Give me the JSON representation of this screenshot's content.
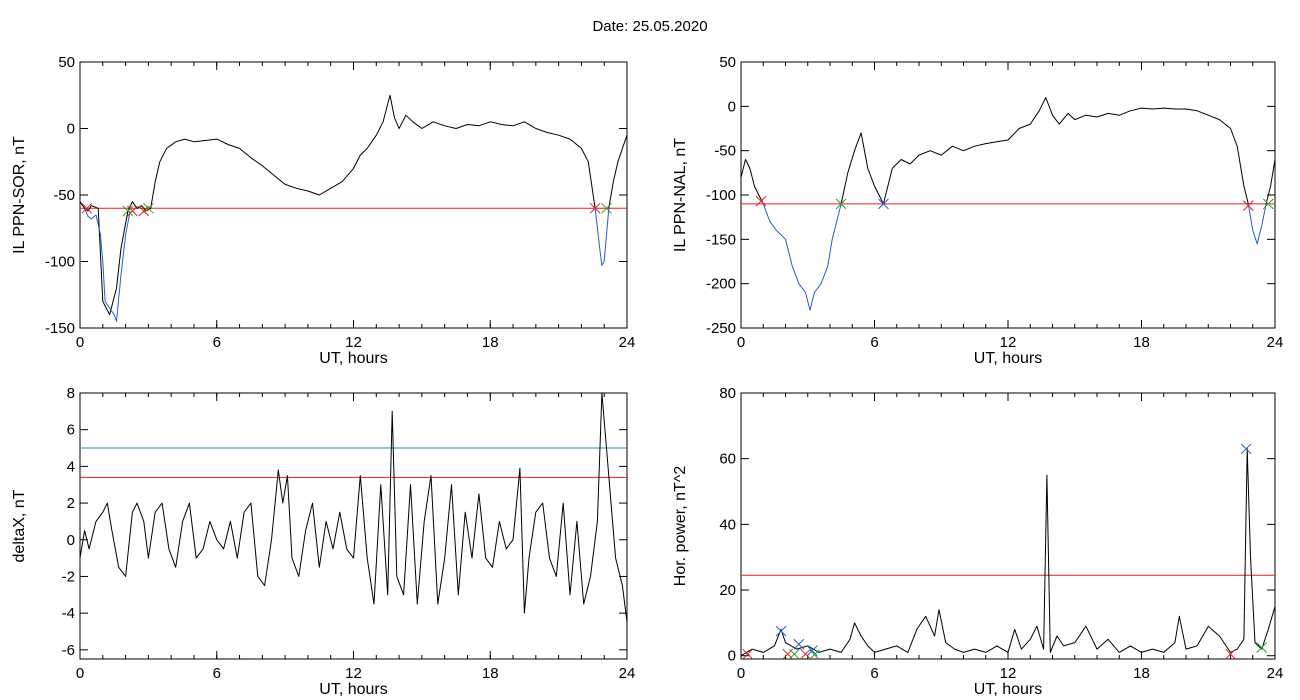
{
  "page": {
    "title": "Date:  25.05.2020"
  },
  "chart_data": [
    {
      "type": "line",
      "xlabel": "UT, hours",
      "ylabel": "IL PPN-SOR, nT",
      "xlim": [
        0,
        24
      ],
      "ylim": [
        -150,
        50
      ],
      "xticks": [
        0,
        6,
        12,
        18,
        24
      ],
      "yticks": [
        -150,
        -100,
        -50,
        0,
        50
      ],
      "series": [
        {
          "color": "#000000",
          "x": [
            0,
            0.2,
            0.35,
            0.5,
            0.8,
            1.0,
            1.3,
            1.6,
            1.8,
            2.1,
            2.3,
            2.5,
            2.7,
            2.9,
            3.1,
            3.3,
            3.5,
            3.8,
            4.2,
            4.6,
            5.0,
            5.5,
            6.0,
            6.5,
            7.0,
            7.5,
            8.0,
            8.5,
            9.0,
            9.5,
            10.0,
            10.5,
            11.0,
            11.5,
            12.0,
            12.3,
            12.6,
            13.0,
            13.3,
            13.6,
            13.8,
            14.0,
            14.3,
            14.6,
            15.0,
            15.5,
            16.0,
            16.5,
            17.0,
            17.5,
            18.0,
            18.5,
            19.0,
            19.5,
            20.0,
            20.5,
            21.0,
            21.5,
            22.0,
            22.3,
            22.6
          ],
          "y": [
            -55,
            -60,
            -62,
            -58,
            -60,
            -130,
            -140,
            -120,
            -90,
            -62,
            -55,
            -60,
            -58,
            -62,
            -60,
            -40,
            -25,
            -15,
            -10,
            -8,
            -10,
            -9,
            -8,
            -12,
            -15,
            -22,
            -28,
            -35,
            -42,
            -45,
            -47,
            -50,
            -45,
            -40,
            -30,
            -20,
            -15,
            -5,
            5,
            25,
            8,
            0,
            10,
            5,
            0,
            5,
            2,
            0,
            3,
            2,
            5,
            3,
            2,
            5,
            0,
            -3,
            -5,
            -8,
            -15,
            -25,
            -60
          ]
        },
        {
          "color": "#1f5fd1",
          "x": [
            0.2,
            0.35,
            0.5,
            0.7,
            0.9,
            1.0,
            1.1,
            1.3,
            1.5,
            1.6,
            1.8,
            2.0,
            2.2
          ],
          "y": [
            -60,
            -66,
            -68,
            -65,
            -80,
            -100,
            -130,
            -135,
            -140,
            -145,
            -110,
            -80,
            -62
          ]
        },
        {
          "color": "#1f5fd1",
          "x": [
            22.6,
            22.8,
            22.9,
            23.0,
            23.1,
            23.2
          ],
          "y": [
            -60,
            -90,
            -103,
            -100,
            -80,
            -60
          ]
        },
        {
          "color": "#000000",
          "x": [
            23.2,
            23.4,
            23.6,
            23.8,
            24.0
          ],
          "y": [
            -60,
            -40,
            -25,
            -15,
            -5
          ]
        }
      ],
      "hlines": [
        {
          "y": -60,
          "color": "#e02020"
        }
      ],
      "markers": [
        {
          "x": 0.3,
          "y": -60,
          "color": "#e02020"
        },
        {
          "x": 2.1,
          "y": -62,
          "color": "#2ca02c"
        },
        {
          "x": 2.3,
          "y": -62,
          "color": "#e02020"
        },
        {
          "x": 2.8,
          "y": -62,
          "color": "#e02020"
        },
        {
          "x": 3.0,
          "y": -60,
          "color": "#2ca02c"
        },
        {
          "x": 22.6,
          "y": -60,
          "color": "#e02020"
        },
        {
          "x": 23.1,
          "y": -60,
          "color": "#2ca02c"
        }
      ]
    },
    {
      "type": "line",
      "xlabel": "UT, hours",
      "ylabel": "IL PPN-NAL, nT",
      "xlim": [
        0,
        24
      ],
      "ylim": [
        -250,
        50
      ],
      "xticks": [
        0,
        6,
        12,
        18,
        24
      ],
      "yticks": [
        -250,
        -200,
        -150,
        -100,
        -50,
        0,
        50
      ],
      "series": [
        {
          "color": "#000000",
          "x": [
            0,
            0.2,
            0.4,
            0.6,
            0.8,
            1.0
          ],
          "y": [
            -80,
            -60,
            -70,
            -90,
            -100,
            -110
          ]
        },
        {
          "color": "#1f5fd1",
          "x": [
            1.0,
            1.3,
            1.6,
            2.0,
            2.3,
            2.6,
            2.9,
            3.1,
            3.3,
            3.6,
            3.9,
            4.1,
            4.3,
            4.5
          ],
          "y": [
            -110,
            -130,
            -140,
            -150,
            -180,
            -200,
            -210,
            -230,
            -210,
            -200,
            -180,
            -150,
            -130,
            -110
          ]
        },
        {
          "color": "#000000",
          "x": [
            4.5,
            4.8,
            5.1,
            5.4,
            5.7,
            6.0,
            6.2,
            6.4
          ],
          "y": [
            -110,
            -75,
            -50,
            -30,
            -70,
            -90,
            -100,
            -110
          ]
        },
        {
          "color": "#000000",
          "x": [
            6.4,
            6.8,
            7.2,
            7.6,
            8.0,
            8.5,
            9.0,
            9.5,
            10.0,
            10.5,
            11.0,
            11.5,
            12.0,
            12.5,
            13.0,
            13.4,
            13.7,
            14.0,
            14.3,
            14.7,
            15.0,
            15.5,
            16.0,
            16.5,
            17.0,
            17.5,
            18.0,
            18.5,
            19.0,
            19.5,
            20.0,
            20.5,
            21.0,
            21.5,
            22.0,
            22.3,
            22.6,
            22.8
          ],
          "y": [
            -110,
            -70,
            -60,
            -65,
            -55,
            -50,
            -55,
            -45,
            -50,
            -45,
            -42,
            -40,
            -38,
            -25,
            -20,
            -5,
            10,
            -10,
            -20,
            -8,
            -15,
            -10,
            -12,
            -8,
            -10,
            -5,
            -2,
            -3,
            -2,
            -3,
            -3,
            -5,
            -10,
            -15,
            -25,
            -45,
            -90,
            -110
          ]
        },
        {
          "color": "#1f5fd1",
          "x": [
            22.8,
            23.0,
            23.2,
            23.4,
            23.6
          ],
          "y": [
            -110,
            -140,
            -155,
            -135,
            -110
          ]
        },
        {
          "color": "#000000",
          "x": [
            23.6,
            23.8,
            24.0
          ],
          "y": [
            -110,
            -90,
            -60
          ]
        }
      ],
      "hlines": [
        {
          "y": -110,
          "color": "#e02020"
        }
      ],
      "markers": [
        {
          "x": 0.9,
          "y": -107,
          "color": "#e02020"
        },
        {
          "x": 4.5,
          "y": -110,
          "color": "#2ca02c"
        },
        {
          "x": 6.4,
          "y": -110,
          "color": "#1f5fd1"
        },
        {
          "x": 22.8,
          "y": -112,
          "color": "#e02020"
        },
        {
          "x": 23.7,
          "y": -110,
          "color": "#2ca02c"
        }
      ]
    },
    {
      "type": "line",
      "xlabel": "UT, hours",
      "ylabel": "deltaX, nT",
      "xlim": [
        0,
        24
      ],
      "ylim": [
        -6.5,
        8
      ],
      "xticks": [
        0,
        6,
        12,
        18,
        24
      ],
      "yticks": [
        -6,
        -4,
        -2,
        0,
        2,
        4,
        6,
        8
      ],
      "series": [
        {
          "color": "#000000",
          "x": [
            0,
            0.2,
            0.4,
            0.7,
            1.0,
            1.2,
            1.4,
            1.7,
            2.0,
            2.3,
            2.5,
            2.8,
            3.0,
            3.3,
            3.6,
            3.9,
            4.2,
            4.5,
            4.8,
            5.1,
            5.4,
            5.7,
            6.0,
            6.3,
            6.6,
            6.9,
            7.2,
            7.5,
            7.8,
            8.1,
            8.4,
            8.7,
            8.9,
            9.1,
            9.3,
            9.6,
            9.9,
            10.2,
            10.5,
            10.8,
            11.1,
            11.4,
            11.7,
            12.0,
            12.3,
            12.6,
            12.9,
            13.2,
            13.5,
            13.7,
            13.9,
            14.2,
            14.5,
            14.8,
            15.1,
            15.4,
            15.7,
            16.0,
            16.3,
            16.6,
            16.9,
            17.2,
            17.5,
            17.8,
            18.1,
            18.4,
            18.7,
            19.0,
            19.3,
            19.5,
            19.7,
            20.0,
            20.3,
            20.6,
            20.9,
            21.2,
            21.5,
            21.8,
            22.1,
            22.4,
            22.7,
            22.9,
            23.1,
            23.3,
            23.5,
            23.8,
            24.0
          ],
          "y": [
            -1,
            0.5,
            -0.5,
            1,
            1.5,
            2,
            0.5,
            -1.5,
            -2,
            1.5,
            2,
            1,
            -1,
            1.5,
            2,
            -0.5,
            -1.5,
            1,
            2,
            -1,
            -0.5,
            1,
            0,
            -0.5,
            1,
            -1,
            1.5,
            2,
            -2,
            -2.5,
            0,
            3.8,
            2,
            3.5,
            -1,
            -2,
            0.5,
            2,
            -1.5,
            1,
            -0.5,
            1.5,
            -0.5,
            -1,
            3.5,
            -1,
            -3.5,
            3,
            -3,
            7,
            -2,
            -3,
            3,
            -3.5,
            1,
            3.5,
            -3.5,
            -1,
            3,
            -3,
            1.5,
            -1,
            2.5,
            -1,
            -1.5,
            1,
            -0.5,
            0,
            3.9,
            -4,
            -1,
            1.5,
            2,
            -1,
            -2,
            2,
            -3,
            1,
            -3.5,
            -2,
            1,
            8,
            5,
            2,
            -1,
            -2.5,
            -4.5
          ]
        }
      ],
      "hlines": [
        {
          "y": 5.0,
          "color": "#1f8fa8"
        },
        {
          "y": 3.4,
          "color": "#e02020"
        }
      ],
      "markers": []
    },
    {
      "type": "line",
      "xlabel": "UT, hours",
      "ylabel": "Hor. power, nT^2",
      "xlim": [
        0,
        24
      ],
      "ylim": [
        -1,
        80
      ],
      "xticks": [
        0,
        6,
        12,
        18,
        24
      ],
      "yticks": [
        0,
        20,
        40,
        60,
        80
      ],
      "series": [
        {
          "color": "#000000",
          "x": [
            0,
            0.5,
            1.0,
            1.5,
            1.8,
            2.0,
            2.5,
            3.0,
            3.5,
            4.0,
            4.5,
            4.9,
            5.1,
            5.4,
            5.7,
            6.0,
            6.5,
            7.0,
            7.5,
            7.9,
            8.3,
            8.7,
            8.9,
            9.2,
            9.6,
            10.0,
            10.5,
            11.0,
            11.5,
            12.0,
            12.3,
            12.6,
            13.0,
            13.3,
            13.6,
            13.75,
            13.9,
            14.2,
            14.5,
            15.0,
            15.5,
            16.0,
            16.5,
            17.0,
            17.5,
            18.0,
            18.5,
            19.0,
            19.5,
            19.7,
            20.0,
            20.5,
            21.0,
            21.5,
            22.0,
            22.3,
            22.6,
            22.75,
            22.9,
            23.1,
            23.4,
            23.7,
            24.0
          ],
          "y": [
            0,
            2,
            1,
            3,
            8,
            4,
            2,
            3,
            1,
            2,
            1,
            5,
            10,
            6,
            3,
            1,
            2,
            3,
            1,
            8,
            12,
            6,
            14,
            4,
            2,
            1,
            2,
            1,
            3,
            1,
            8,
            2,
            5,
            9,
            2,
            55,
            1,
            6,
            3,
            4,
            9,
            2,
            5,
            1,
            3,
            1,
            2,
            1,
            4,
            12,
            2,
            3,
            9,
            6,
            1,
            2,
            5,
            63,
            30,
            4,
            2,
            8,
            15
          ]
        }
      ],
      "hlines": [
        {
          "y": 24.5,
          "color": "#e02020"
        }
      ],
      "markers": [
        {
          "x": 0.3,
          "y": 0.5,
          "color": "#e02020"
        },
        {
          "x": 1.8,
          "y": 7.5,
          "color": "#1f5fd1"
        },
        {
          "x": 2.1,
          "y": 0.5,
          "color": "#e02020"
        },
        {
          "x": 2.4,
          "y": 0.5,
          "color": "#2ca02c"
        },
        {
          "x": 2.6,
          "y": 3.5,
          "color": "#1f5fd1"
        },
        {
          "x": 2.9,
          "y": 0.5,
          "color": "#e02020"
        },
        {
          "x": 3.2,
          "y": 1.5,
          "color": "#1f5fd1"
        },
        {
          "x": 3.3,
          "y": 0.3,
          "color": "#2ca02c"
        },
        {
          "x": 22.0,
          "y": 0.5,
          "color": "#e02020"
        },
        {
          "x": 22.7,
          "y": 63,
          "color": "#1f5fd1"
        },
        {
          "x": 23.4,
          "y": 2.5,
          "color": "#2ca02c"
        }
      ]
    }
  ]
}
